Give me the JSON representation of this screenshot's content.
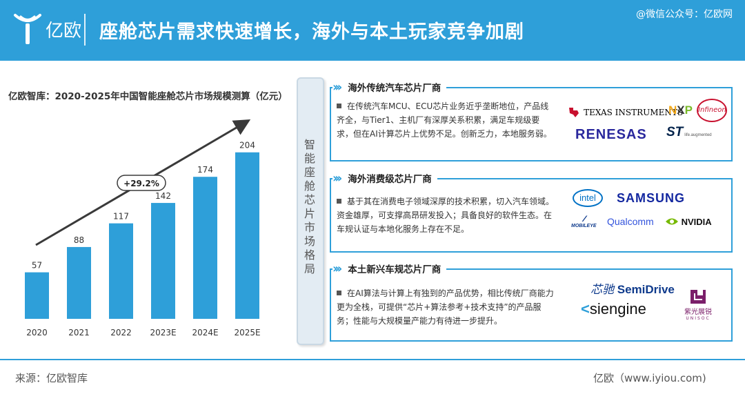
{
  "header": {
    "logo_text": "亿欧",
    "title": "座舱芯片需求快速增长，海外与本土玩家竞争加剧",
    "watermark": "@微信公众号：亿欧网"
  },
  "chart_data": {
    "type": "bar",
    "title": "亿欧智库：2020-2025年中国智能座舱芯片市场规模测算（亿元）",
    "categories": [
      "2020",
      "2021",
      "2022",
      "2023E",
      "2024E",
      "2025E"
    ],
    "values": [
      57,
      88,
      117,
      142,
      174,
      204
    ],
    "cagr_label": "+29.2%",
    "ylim": [
      0,
      230
    ],
    "grid": false,
    "bar_color": "#2e9fd9"
  },
  "center": {
    "label": "智能座舱芯片市场格局"
  },
  "sections": [
    {
      "title": "海外传统汽车芯片厂商",
      "text": "在传统汽车MCU、ECU芯片业务近乎垄断地位，产品线齐全，与Tier1、主机厂有深厚关系积累，满足车规级要求，但在AI计算芯片上优势不足。创新乏力，本地服务弱。",
      "brands": [
        "TEXAS INSTRUMENTS",
        "NXP",
        "Infineon",
        "RENESAS",
        "ST"
      ],
      "brand_sub": "life.augmented"
    },
    {
      "title": "海外消费级芯片厂商",
      "text": "基于其在消费电子领域深厚的技术积累，切入汽车领域。资金雄厚，可支撑高昂研发投入；具备良好的软件生态。在车规认证与本地化服务上存在不足。",
      "brands": [
        "intel",
        "SAMSUNG",
        "MOBILEYE",
        "Qualcomm",
        "NVIDIA"
      ]
    },
    {
      "title": "本土新兴车规芯片厂商",
      "text": "在AI算法与计算上有独到的产品优势，相比传统厂商能力更为全栈，可提供“芯片+算法参考+技术支持”的产品服务；性能与大规模量产能力有待进一步提升。",
      "brands": [
        "芯驰",
        "SemiDrive",
        "siengine",
        "紫光展锐",
        "UNISOC"
      ]
    }
  ],
  "footer": {
    "source": "来源：亿欧智库",
    "site": "亿欧（www.iyiou.com)"
  },
  "colors": {
    "accent": "#2e9fd9",
    "ti_red": "#c8102e",
    "nxp_orange": "#f1a81b",
    "nxp_green": "#7ab929",
    "renesas_navy": "#2a289d",
    "st_navy": "#03234b",
    "intel_blue": "#0071c5",
    "samsung_blue": "#1428a0",
    "nvidia_green": "#76b900",
    "semidrive_blue": "#0e3a8c",
    "unisoc_purple": "#7b1f6a"
  }
}
